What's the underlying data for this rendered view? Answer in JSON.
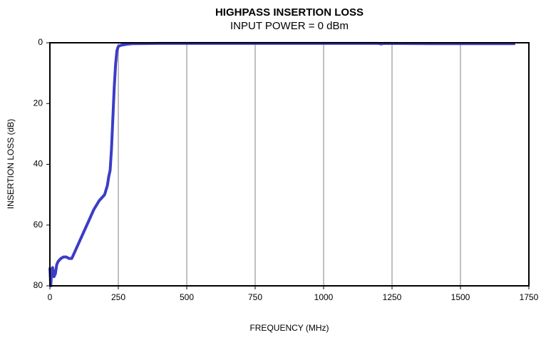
{
  "chart_data": {
    "type": "line",
    "title": "HIGHPASS INSERTION LOSS",
    "subtitle": "INPUT POWER = 0 dBm",
    "xlabel": "FREQUENCY (MHz)",
    "ylabel": "INSERTION LOSS (dB)",
    "x": [
      0,
      3,
      6,
      10,
      15,
      20,
      25,
      30,
      40,
      50,
      60,
      70,
      80,
      90,
      100,
      120,
      140,
      160,
      180,
      200,
      210,
      215,
      220,
      225,
      230,
      235,
      240,
      245,
      250,
      260,
      280,
      300,
      400,
      600,
      800,
      1000,
      1200,
      1210,
      1220,
      1400,
      1700
    ],
    "series": [
      {
        "name": "Insertion Loss",
        "color": "#3c3cc8",
        "values": [
          74,
          80,
          76,
          74,
          77,
          76,
          73,
          72,
          71,
          70.5,
          70.5,
          71,
          71,
          69,
          67,
          63,
          59,
          55,
          52,
          50,
          47,
          44,
          42,
          35,
          25,
          15,
          7,
          2.5,
          1.2,
          0.8,
          0.5,
          0.3,
          0.2,
          0.2,
          0.2,
          0.2,
          0.2,
          0.4,
          0.2,
          0.3,
          0.3
        ]
      }
    ],
    "xlim": [
      0,
      1750
    ],
    "xticks": [
      0,
      250,
      500,
      750,
      1000,
      1250,
      1500,
      1750
    ],
    "ylim": [
      0,
      80
    ],
    "yticks": [
      0,
      20,
      40,
      60,
      80
    ],
    "y_reversed": true,
    "grid": "x"
  }
}
